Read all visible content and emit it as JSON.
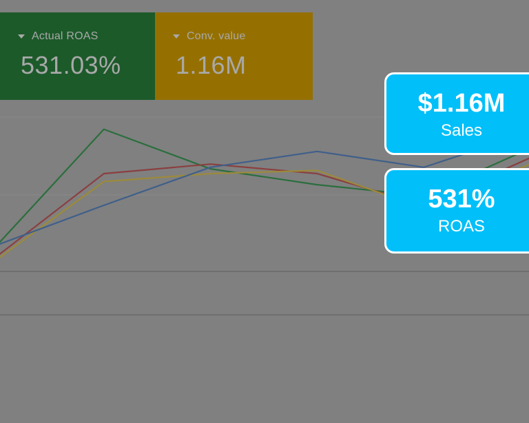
{
  "scorecards": [
    {
      "label": "Actual ROAS",
      "value": "531.03%",
      "color": "#1c5a2a"
    },
    {
      "label": "Conv. value",
      "value": "1.16M",
      "color": "#957000"
    }
  ],
  "callouts": {
    "sales": {
      "value": "$1.16M",
      "label": "Sales"
    },
    "roas": {
      "value": "531%",
      "label": "ROAS"
    }
  },
  "chart_data": {
    "type": "line",
    "x": [
      0,
      1,
      2,
      3,
      4,
      5
    ],
    "ylim": [
      0,
      100
    ],
    "grid": true,
    "series": [
      {
        "color": "#2a6e3c",
        "values": [
          15,
          88,
          63,
          53,
          46,
          76
        ]
      },
      {
        "color": "#8a3f40",
        "values": [
          8,
          60,
          66,
          60,
          40,
          70
        ]
      },
      {
        "color": "#9c8a3a",
        "values": [
          6,
          55,
          60,
          62,
          38,
          66
        ]
      },
      {
        "color": "#3f5f8a",
        "values": [
          15,
          40,
          64,
          74,
          64,
          86
        ]
      }
    ]
  }
}
